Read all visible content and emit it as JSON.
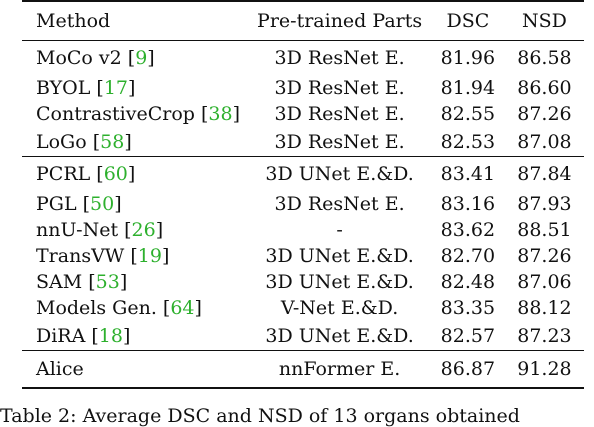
{
  "table": {
    "headers": {
      "method": "Method",
      "parts": "Pre-trained Parts",
      "dsc": "DSC",
      "nsd": "NSD"
    },
    "group1": [
      {
        "method": "MoCo v2",
        "ref": "9",
        "parts": "3D ResNet E.",
        "dsc": "81.96",
        "nsd": "86.58"
      },
      {
        "method": "BYOL",
        "ref": "17",
        "parts": "3D ResNet E.",
        "dsc": "81.94",
        "nsd": "86.60"
      },
      {
        "method": "ContrastiveCrop",
        "ref": "38",
        "parts": "3D ResNet E.",
        "dsc": "82.55",
        "nsd": "87.26"
      },
      {
        "method": "LoGo",
        "ref": "58",
        "parts": "3D ResNet E.",
        "dsc": "82.53",
        "nsd": "87.08"
      }
    ],
    "group2": [
      {
        "method": "PCRL",
        "ref": "60",
        "parts": "3D UNet E.&D.",
        "dsc": "83.41",
        "nsd": "87.84"
      },
      {
        "method": "PGL",
        "ref": "50",
        "parts": "3D ResNet E.",
        "dsc": "83.16",
        "nsd": "87.93"
      },
      {
        "method": "nnU-Net",
        "ref": "26",
        "parts": "-",
        "dsc": "83.62",
        "nsd": "88.51"
      },
      {
        "method": "TransVW",
        "ref": "19",
        "parts": "3D UNet E.&D.",
        "dsc": "82.70",
        "nsd": "87.26"
      },
      {
        "method": "SAM",
        "ref": "53",
        "parts": "3D UNet E.&D.",
        "dsc": "82.48",
        "nsd": "87.06"
      },
      {
        "method": "Models Gen.",
        "ref": "64",
        "parts": "V-Net E.&D.",
        "dsc": "83.35",
        "nsd": "88.12"
      },
      {
        "method": "DiRA",
        "ref": "18",
        "parts": "3D UNet E.&D.",
        "dsc": "82.57",
        "nsd": "87.23"
      }
    ],
    "ours": {
      "method": "Alice",
      "parts": "nnFormer E.",
      "dsc": "86.87",
      "nsd": "91.28"
    }
  },
  "caption": "Table 2: Average DSC and NSD of 13 organs obtained"
}
